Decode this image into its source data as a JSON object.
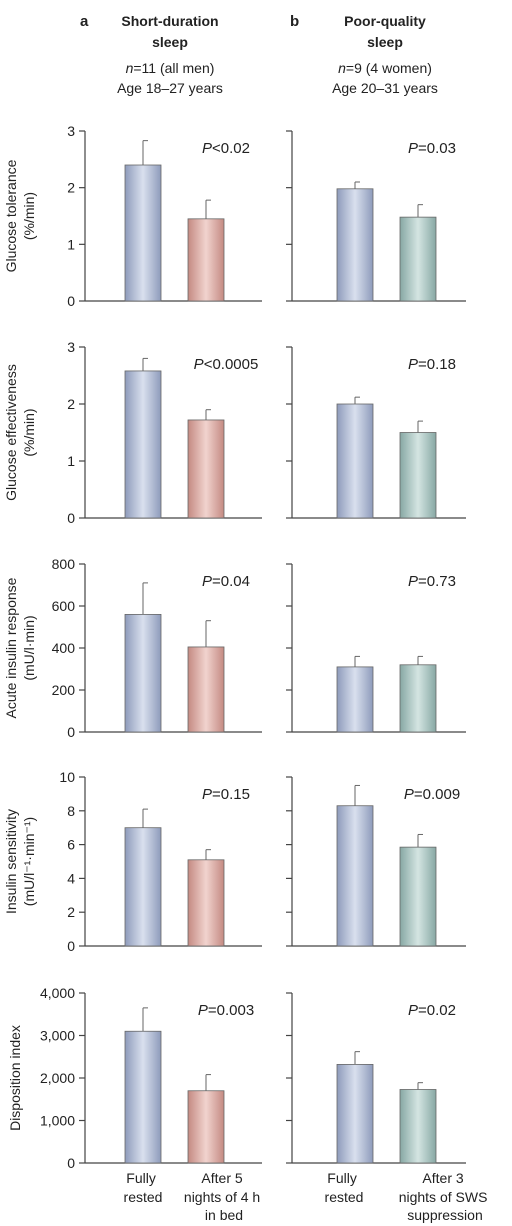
{
  "panels": {
    "a": {
      "letter": "a",
      "title_lines": [
        "Short-duration",
        "sleep"
      ],
      "subtitle_n": "n",
      "subtitle_n_rest": "=11 (all men)",
      "subtitle_age": "Age 18–27 years"
    },
    "b": {
      "letter": "b",
      "title_lines": [
        "Poor-quality",
        "sleep"
      ],
      "subtitle_n": "n",
      "subtitle_n_rest": "=9 (4 women)",
      "subtitle_age": "Age 20–31 years"
    }
  },
  "x_labels": {
    "a": [
      [
        "Fully",
        "rested"
      ],
      [
        "After 5",
        "nights of 4 h",
        "in bed"
      ]
    ],
    "b": [
      [
        "Fully",
        "rested"
      ],
      [
        "After 3",
        "nights of SWS",
        "suppression"
      ]
    ]
  },
  "colors": {
    "rested": "#a9b4cf",
    "short_sleep": "#d9aaa3",
    "poor_quality": "#a5c2bf",
    "axis": "#444444"
  },
  "chart_data": [
    {
      "type": "bar",
      "ylabel_lines": [
        "Glucose tolerance",
        "(%/min)"
      ],
      "ylim": [
        0,
        3
      ],
      "yticks": [
        "0",
        "1",
        "2",
        "3"
      ],
      "ytick_values": [
        0,
        1,
        2,
        3
      ],
      "a": {
        "values": [
          2.4,
          1.45
        ],
        "errors": [
          0.43,
          0.33
        ],
        "p_label": "P",
        "p_text": "<0.02"
      },
      "b": {
        "values": [
          1.98,
          1.48
        ],
        "errors": [
          0.12,
          0.22
        ],
        "p_label": "P",
        "p_text": "=0.03"
      }
    },
    {
      "type": "bar",
      "ylabel_lines": [
        "Glucose effectiveness",
        "(%/min)"
      ],
      "ylim": [
        0,
        3
      ],
      "yticks": [
        "0",
        "1",
        "2",
        "3"
      ],
      "ytick_values": [
        0,
        1,
        2,
        3
      ],
      "a": {
        "values": [
          2.58,
          1.72
        ],
        "errors": [
          0.22,
          0.18
        ],
        "p_label": "P",
        "p_text": "<0.0005"
      },
      "b": {
        "values": [
          2.0,
          1.5
        ],
        "errors": [
          0.12,
          0.2
        ],
        "p_label": "P",
        "p_text": "=0.18"
      }
    },
    {
      "type": "bar",
      "ylabel_lines": [
        "Acute insulin response",
        "(mU/l·min)"
      ],
      "ylim": [
        0,
        800
      ],
      "yticks": [
        "0",
        "200",
        "400",
        "600",
        "800"
      ],
      "ytick_values": [
        0,
        200,
        400,
        600,
        800
      ],
      "a": {
        "values": [
          560,
          405
        ],
        "errors": [
          150,
          125
        ],
        "p_label": "P",
        "p_text": "=0.04"
      },
      "b": {
        "values": [
          310,
          320
        ],
        "errors": [
          50,
          40
        ],
        "p_label": "P",
        "p_text": "=0.73"
      }
    },
    {
      "type": "bar",
      "ylabel_lines": [
        "Insulin sensitivity",
        "(mU/l⁻¹·min⁻¹)"
      ],
      "ylim": [
        0,
        10
      ],
      "yticks": [
        "0",
        "2",
        "4",
        "6",
        "8",
        "10"
      ],
      "ytick_values": [
        0,
        2,
        4,
        6,
        8,
        10
      ],
      "a": {
        "values": [
          7.0,
          5.1
        ],
        "errors": [
          1.1,
          0.6
        ],
        "p_label": "P",
        "p_text": "=0.15"
      },
      "b": {
        "values": [
          8.3,
          5.85
        ],
        "errors": [
          1.2,
          0.75
        ],
        "p_label": "P",
        "p_text": "=0.009"
      }
    },
    {
      "type": "bar",
      "ylabel_lines": [
        "Disposition index"
      ],
      "ylim": [
        0,
        4000
      ],
      "yticks": [
        "0",
        "1,000",
        "2,000",
        "3,000",
        "4,000"
      ],
      "ytick_values": [
        0,
        1000,
        2000,
        3000,
        4000
      ],
      "a": {
        "values": [
          3100,
          1700
        ],
        "errors": [
          550,
          380
        ],
        "p_label": "P",
        "p_text": "=0.003"
      },
      "b": {
        "values": [
          2320,
          1730
        ],
        "errors": [
          300,
          160
        ],
        "p_label": "P",
        "p_text": "=0.02"
      }
    }
  ]
}
